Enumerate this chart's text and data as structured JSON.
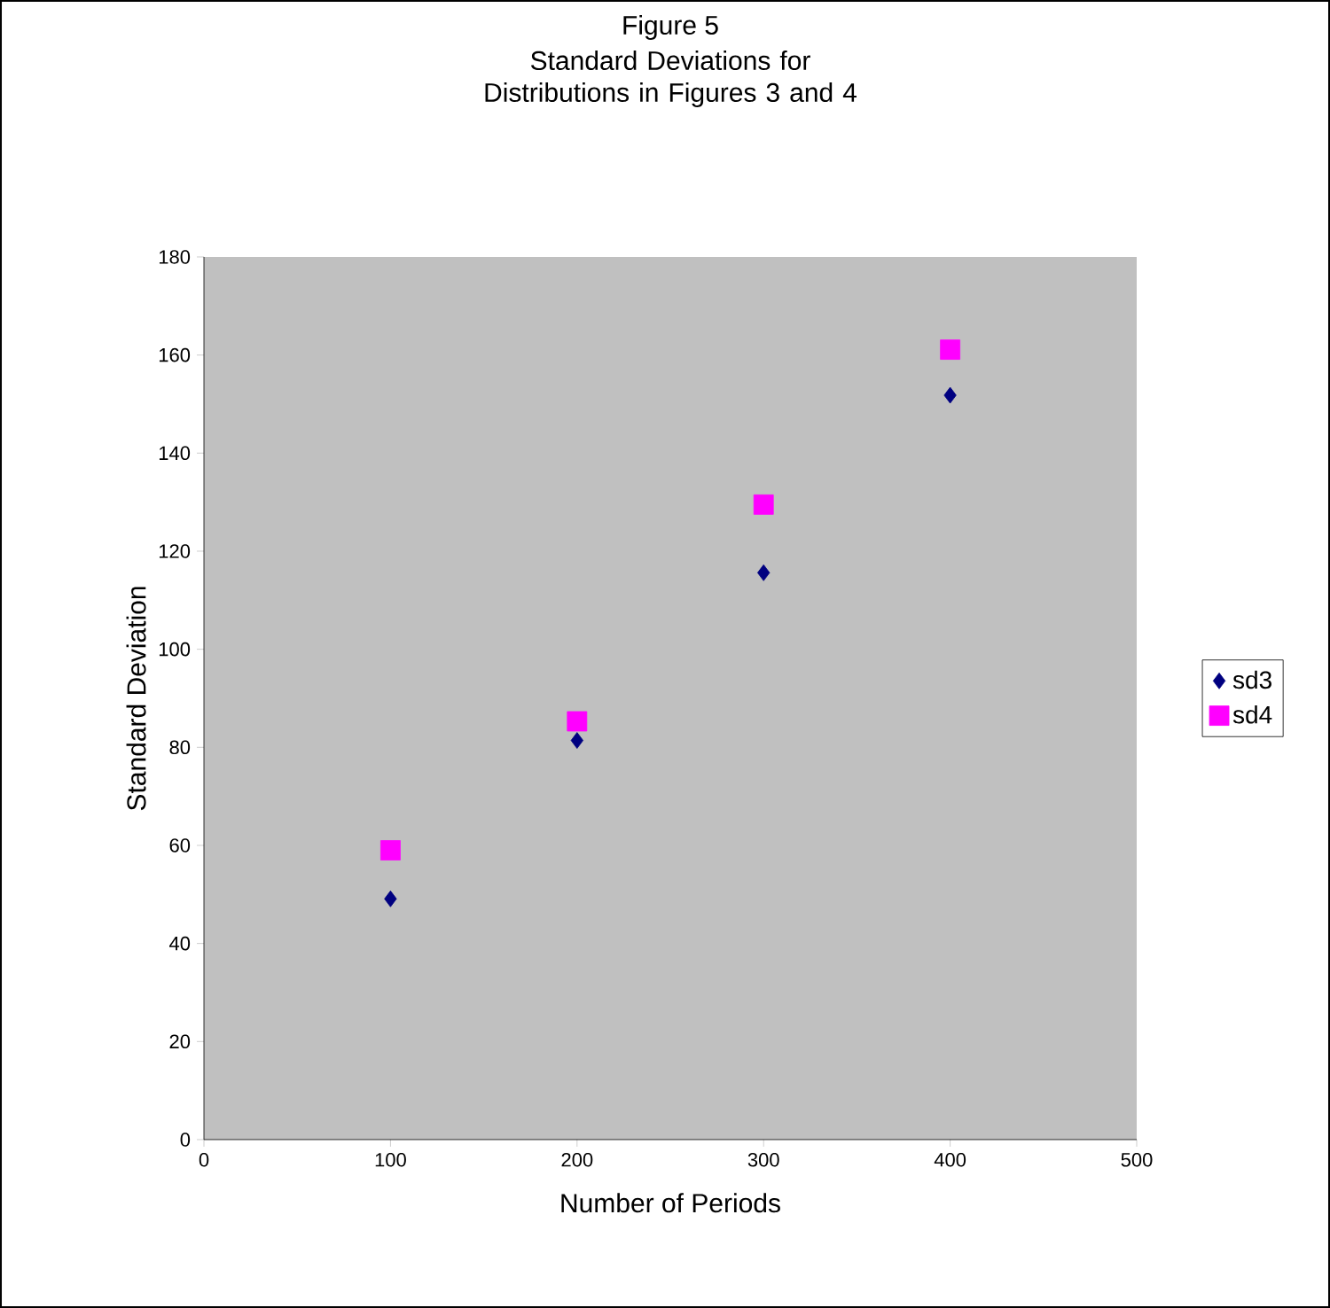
{
  "chart_data": {
    "type": "scatter",
    "title": "Figure 5",
    "subtitle": "Standard Deviations for Distributions in Figures 3 and 4",
    "xlabel": "Number of Periods",
    "ylabel": "Standard Deviation",
    "x": [
      100,
      200,
      300,
      400
    ],
    "series": [
      {
        "name": "sd3",
        "color": "#000080",
        "marker": "diamond",
        "values": [
          49.1,
          81.4,
          115.6,
          151.8
        ]
      },
      {
        "name": "sd4",
        "color": "#ff00ff",
        "marker": "square",
        "values": [
          59.0,
          85.3,
          129.5,
          161.1
        ]
      }
    ],
    "xlim": [
      0,
      500
    ],
    "xticks": [
      0,
      100,
      200,
      300,
      400,
      500
    ],
    "ylim": [
      0,
      180
    ],
    "yticks": [
      0,
      20,
      40,
      60,
      80,
      100,
      120,
      140,
      160,
      180
    ],
    "grid": false,
    "legend": "right"
  }
}
